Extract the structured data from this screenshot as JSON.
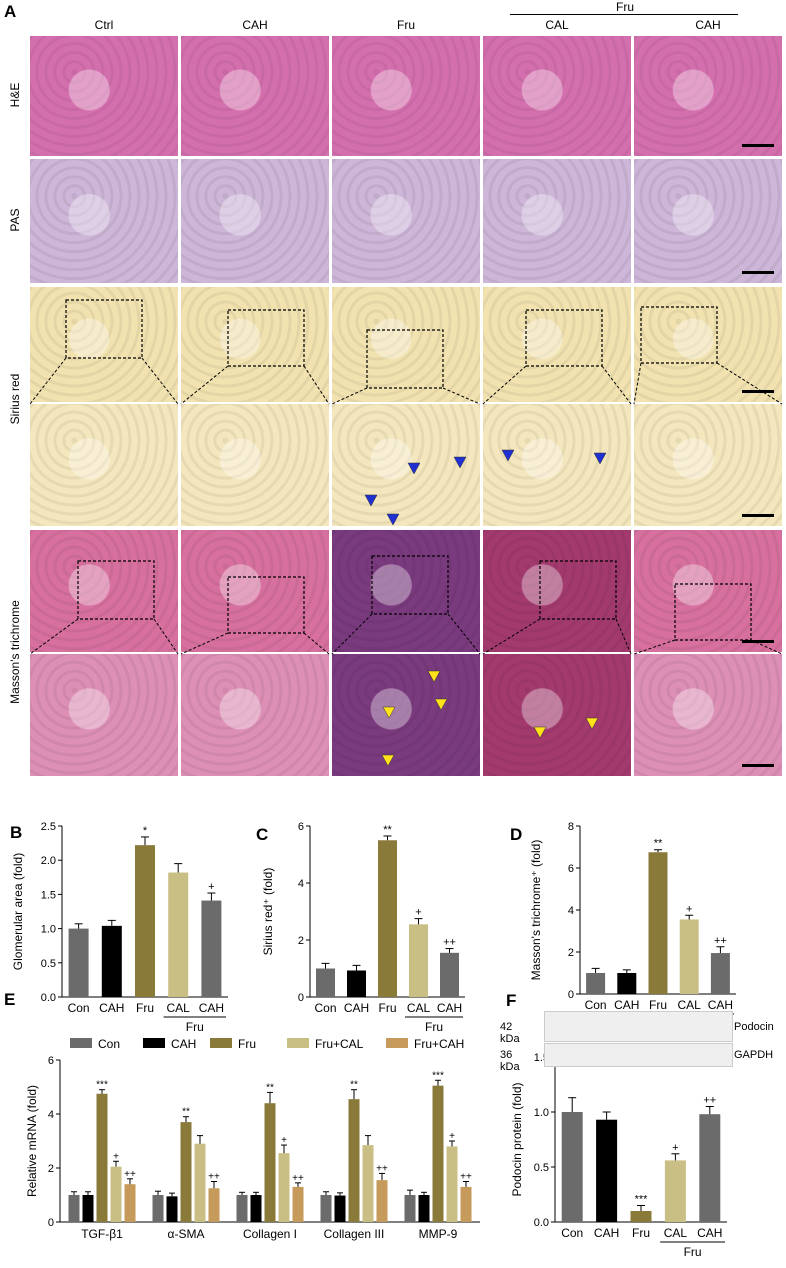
{
  "panel_a": {
    "letter": "A",
    "columns": [
      "Ctrl",
      "CAH",
      "Fru",
      "CAL",
      "CAH"
    ],
    "fru_group_label": "Fru",
    "rows": [
      "H&E",
      "PAS",
      "Sirius red",
      "Masson's trichrome"
    ],
    "tile_colors": {
      "he": "#d46fae",
      "pas": "#cdb6d8",
      "sirius": "#f1e2b0",
      "sirius_zoom": "#f4e7bd",
      "masson_ctrl": "#d7709e",
      "masson_fru": "#7a3a7e",
      "masson_fru_cal": "#a33a6e",
      "masson_zoom": "#dd8fb6"
    }
  },
  "colors": {
    "con": "#6b6b6b",
    "cah": "#000000",
    "fru": "#8a7a3a",
    "fru_cal": "#c9bf85",
    "fru_cah": "#c59a5a",
    "marker_blue": "#1f2fd0",
    "marker_yellow": "#ffe21a"
  },
  "chart_data": [
    {
      "panel": "B",
      "type": "bar",
      "categories": [
        "Con",
        "CAH",
        "Fru",
        "CAL",
        "CAH"
      ],
      "group_label": "Fru",
      "values": [
        1.0,
        1.04,
        2.22,
        1.82,
        1.41
      ],
      "errors": [
        0.07,
        0.08,
        0.12,
        0.13,
        0.11
      ],
      "significance": [
        "",
        "",
        "*",
        "",
        "+"
      ],
      "ylabel": "Glomerular area (fold)",
      "ylim": [
        0,
        2.5
      ],
      "yticks": [
        "0.0",
        "0.5",
        "1.0",
        "1.5",
        "2.0",
        "2.5"
      ]
    },
    {
      "panel": "C",
      "type": "bar",
      "categories": [
        "Con",
        "CAH",
        "Fru",
        "CAL",
        "CAH"
      ],
      "group_label": "Fru",
      "values": [
        1.0,
        0.93,
        5.5,
        2.55,
        1.55
      ],
      "errors": [
        0.18,
        0.18,
        0.15,
        0.2,
        0.15
      ],
      "significance": [
        "",
        "",
        "**",
        "+",
        "++"
      ],
      "ylabel": "Sirius red⁺ (fold)",
      "ylim": [
        0,
        6
      ],
      "yticks": [
        "0",
        "2",
        "4",
        "6"
      ]
    },
    {
      "panel": "D",
      "type": "bar",
      "categories": [
        "Con",
        "CAH",
        "Fru",
        "CAL",
        "CAH"
      ],
      "group_label": "Fru",
      "values": [
        1.0,
        1.0,
        6.75,
        3.55,
        1.95
      ],
      "errors": [
        0.22,
        0.15,
        0.12,
        0.2,
        0.3
      ],
      "significance": [
        "",
        "",
        "**",
        "+",
        "++"
      ],
      "ylabel": "Masson's trichrome⁺ (fold)",
      "ylim": [
        0,
        8
      ],
      "yticks": [
        "0",
        "2",
        "4",
        "6",
        "8"
      ]
    },
    {
      "panel": "E",
      "type": "bar",
      "categories": [
        "TGF-β1",
        "α-SMA",
        "Collagen I",
        "Collagen III",
        "MMP-9"
      ],
      "series": [
        {
          "name": "Con",
          "values": [
            1.0,
            1.0,
            1.0,
            1.0,
            1.0
          ],
          "errors": [
            0.12,
            0.14,
            0.1,
            0.12,
            0.18
          ],
          "sig": [
            "",
            "",
            "",
            "",
            ""
          ]
        },
        {
          "name": "CAH",
          "values": [
            1.0,
            0.95,
            1.0,
            0.98,
            1.0
          ],
          "errors": [
            0.12,
            0.12,
            0.1,
            0.1,
            0.1
          ],
          "sig": [
            "",
            "",
            "",
            "",
            ""
          ]
        },
        {
          "name": "Fru",
          "values": [
            4.75,
            3.7,
            4.4,
            4.55,
            5.05
          ],
          "errors": [
            0.15,
            0.2,
            0.4,
            0.35,
            0.2
          ],
          "sig": [
            "***",
            "**",
            "**",
            "**",
            "***"
          ]
        },
        {
          "name": "Fru+CAL",
          "values": [
            2.05,
            2.9,
            2.55,
            2.85,
            2.8
          ],
          "errors": [
            0.2,
            0.3,
            0.3,
            0.35,
            0.2
          ],
          "sig": [
            "+",
            "",
            "+",
            "",
            "+"
          ]
        },
        {
          "name": "Fru+CAH",
          "values": [
            1.4,
            1.25,
            1.3,
            1.55,
            1.3
          ],
          "errors": [
            0.2,
            0.25,
            0.15,
            0.25,
            0.2
          ],
          "sig": [
            "++",
            "++",
            "++",
            "++",
            "++"
          ]
        }
      ],
      "ylabel": "Relative mRNA (fold)",
      "ylim": [
        0,
        6
      ],
      "yticks": [
        "0",
        "2",
        "4",
        "6"
      ],
      "legend": "top"
    },
    {
      "panel": "F",
      "type": "bar",
      "categories": [
        "Con",
        "CAH",
        "Fru",
        "CAL",
        "CAH"
      ],
      "group_label": "Fru",
      "values": [
        1.0,
        0.93,
        0.1,
        0.56,
        0.98
      ],
      "errors": [
        0.13,
        0.07,
        0.05,
        0.06,
        0.07
      ],
      "significance": [
        "",
        "",
        "***",
        "+",
        "++"
      ],
      "ylabel": "Podocin protein (fold)",
      "ylim": [
        0,
        1.5
      ],
      "yticks": [
        "0.0",
        "0.5",
        "1.0",
        "1.5"
      ],
      "blot": {
        "rows": [
          {
            "kda": "42 kDa",
            "protein": "Podocin"
          },
          {
            "kda": "36 kDa",
            "protein": "GAPDH"
          }
        ]
      }
    }
  ]
}
